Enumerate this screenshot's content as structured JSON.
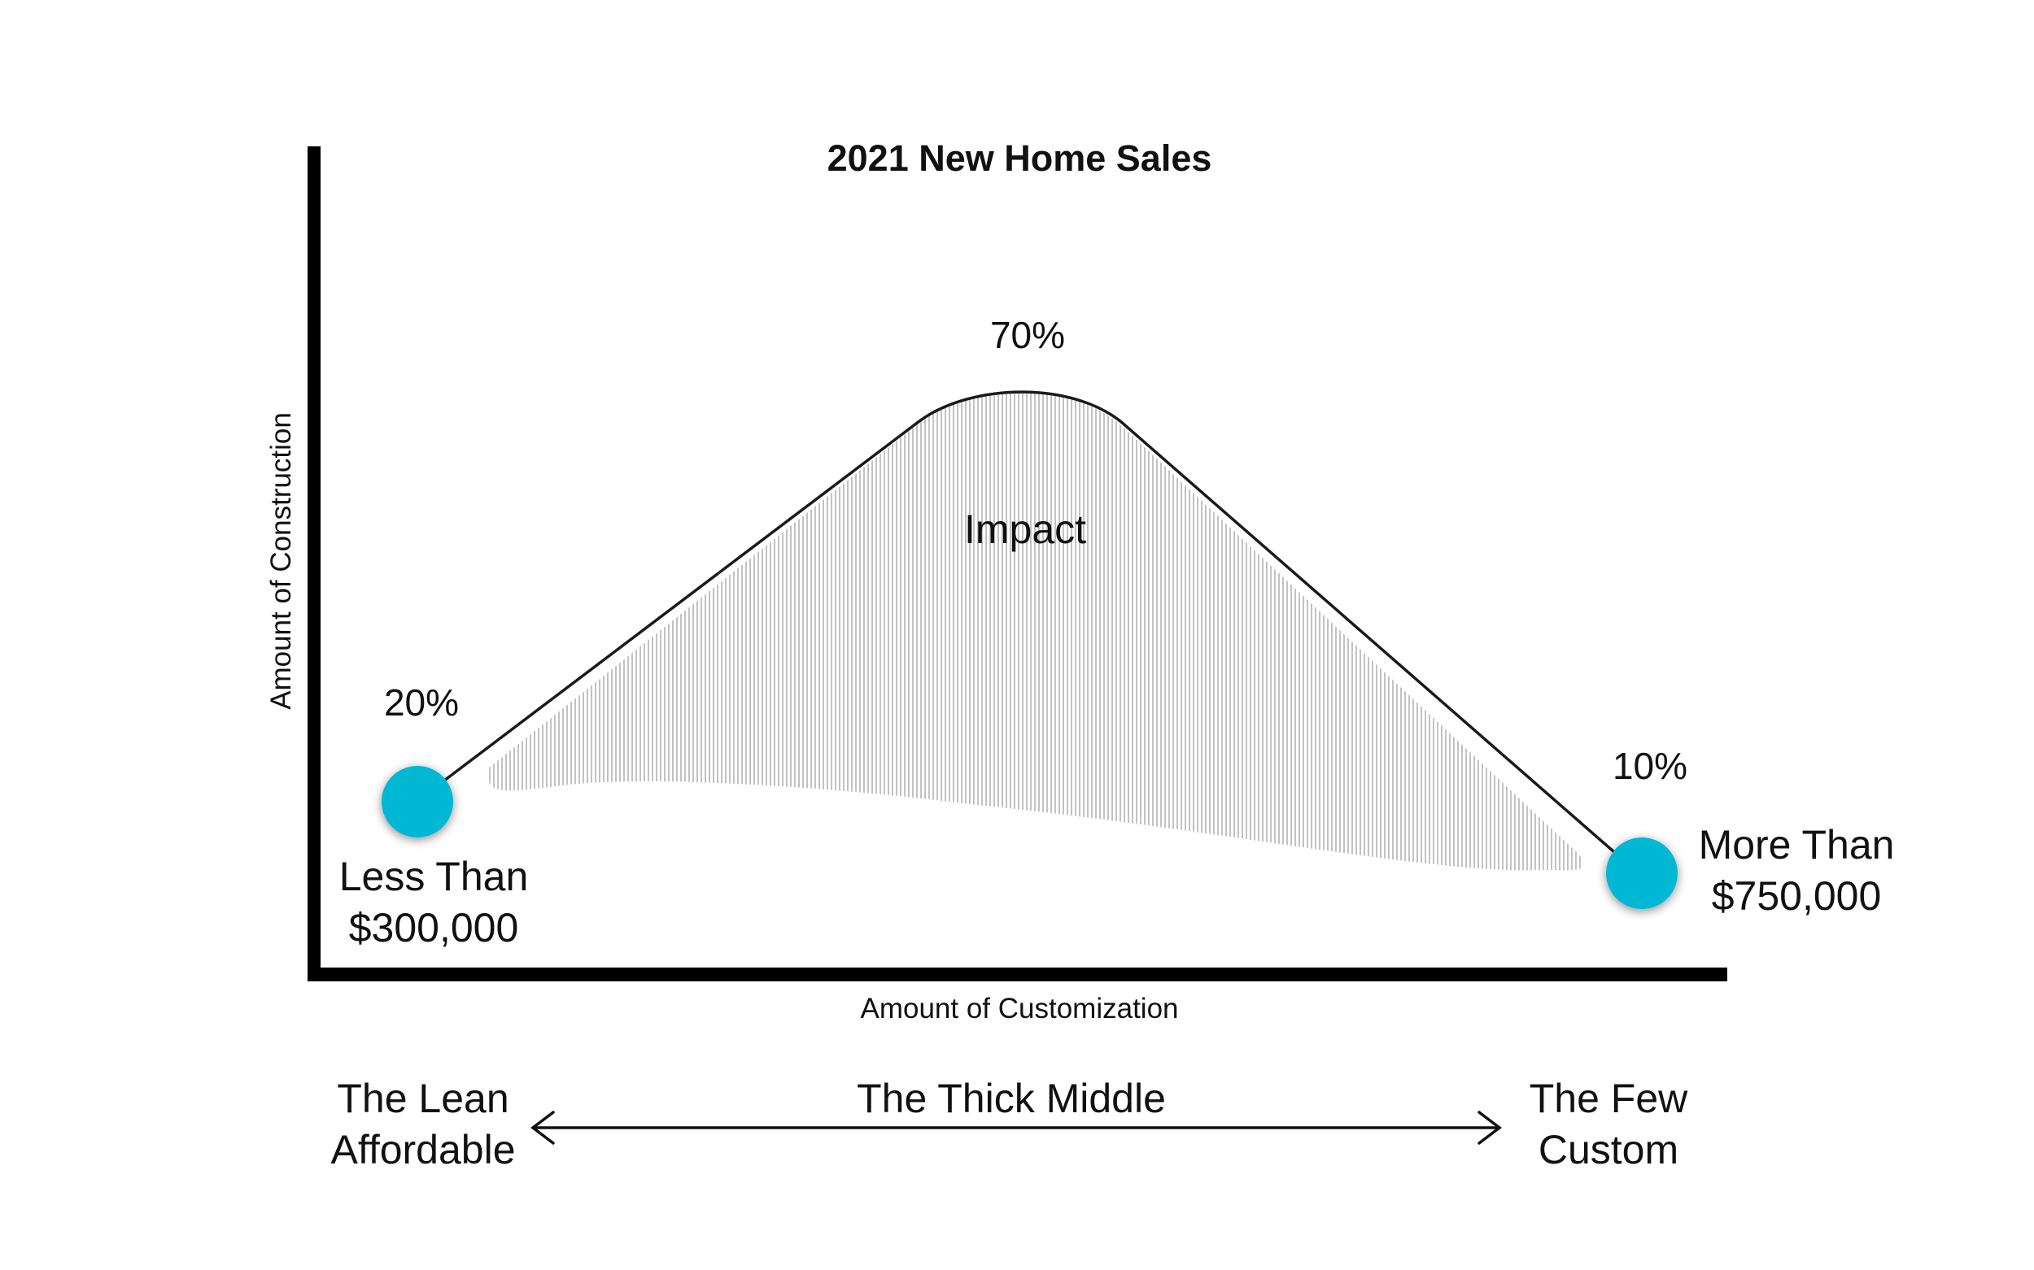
{
  "title": "2021 New Home Sales",
  "y_axis_label": "Amount of Construction",
  "x_axis_label": "Amount of Customization",
  "peak": {
    "percent": "70%",
    "label": "Impact"
  },
  "left_point": {
    "percent": "20%",
    "label_line1": "Less Than",
    "label_line2": "$300,000"
  },
  "right_point": {
    "percent": "10%",
    "label_line1": "More Than",
    "label_line2": "$750,000"
  },
  "bottom": {
    "left_line1": "The Lean",
    "left_line2": "Affordable",
    "middle": "The Thick Middle",
    "right_line1": "The Few",
    "right_line2": "Custom"
  },
  "colors": {
    "dot": "#00b7d4",
    "axis": "#000000",
    "hatch": "#9a9a9a",
    "curve": "#1a1a1a"
  }
}
